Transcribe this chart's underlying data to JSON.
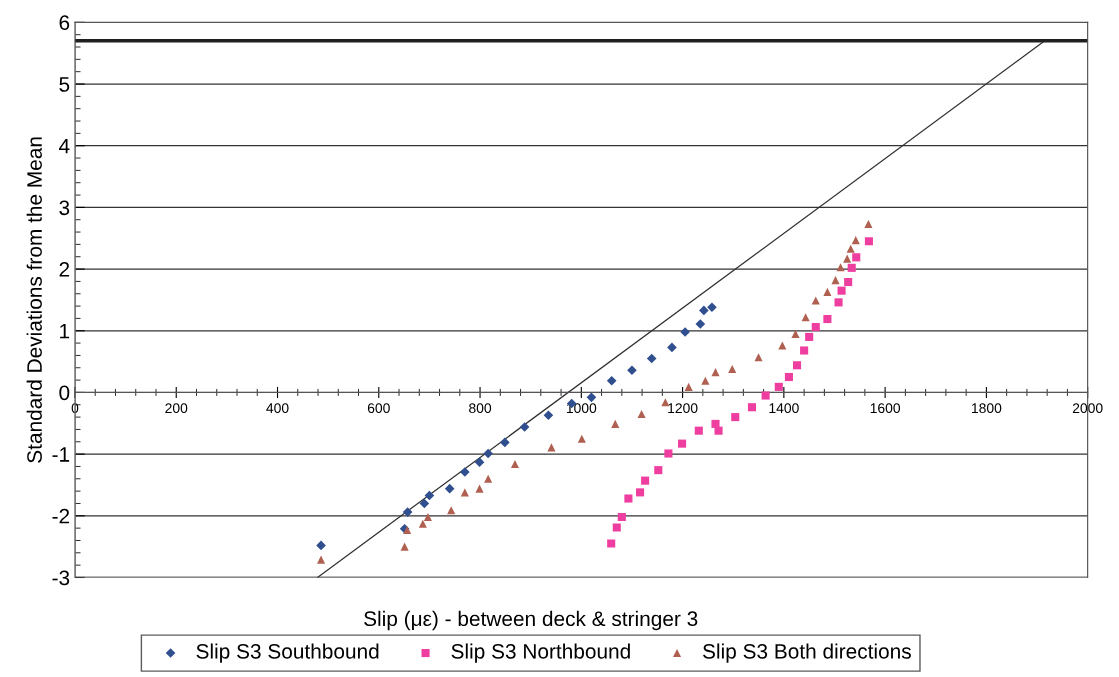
{
  "chart_data": {
    "type": "scatter",
    "xlabel": "Slip (με) - between deck & stringer 3",
    "ylabel": "Standard Deviations from the Mean",
    "xlim": [
      0,
      2000
    ],
    "xticks": [
      0,
      200,
      400,
      600,
      800,
      1000,
      1200,
      1400,
      1600,
      1800,
      2000
    ],
    "ylim": [
      -3,
      6
    ],
    "yticks": [
      -3,
      -2,
      -1,
      0,
      1,
      2,
      3,
      4,
      5,
      6
    ],
    "grid": "y",
    "legend": "bottom",
    "ref_lines": [
      {
        "axis": "y",
        "value": 5.7,
        "color": "#202020"
      }
    ],
    "series": [
      {
        "name": "Slip S3 Southbound",
        "color": "#2f4f8f",
        "marker": "diamond",
        "x": [
          486,
          651,
          657,
          690,
          700,
          740,
          770,
          799,
          816,
          849,
          888,
          935,
          981,
          1020,
          1060,
          1100,
          1139,
          1179,
          1205,
          1235,
          1242,
          1258
        ],
        "values": [
          -2.48,
          -2.21,
          -1.94,
          -1.8,
          -1.67,
          -1.56,
          -1.29,
          -1.13,
          -0.99,
          -0.81,
          -0.56,
          -0.37,
          -0.18,
          -0.08,
          0.19,
          0.36,
          0.55,
          0.73,
          0.98,
          1.11,
          1.33,
          1.38
        ]
      },
      {
        "name": "Slip S3 Northbound",
        "color": "#ee3fa0",
        "marker": "square",
        "x": [
          1059,
          1070,
          1080,
          1093,
          1116,
          1126,
          1152,
          1172,
          1199,
          1232,
          1265,
          1271,
          1304,
          1337,
          1364,
          1390,
          1410,
          1426,
          1440,
          1450,
          1463,
          1486,
          1508,
          1514,
          1527,
          1534,
          1543,
          1568
        ],
        "values": [
          -2.45,
          -2.19,
          -2.02,
          -1.72,
          -1.62,
          -1.43,
          -1.26,
          -0.99,
          -0.83,
          -0.62,
          -0.51,
          -0.62,
          -0.4,
          -0.24,
          -0.05,
          0.09,
          0.25,
          0.44,
          0.68,
          0.9,
          1.06,
          1.19,
          1.46,
          1.65,
          1.79,
          2.02,
          2.19,
          2.45
        ]
      },
      {
        "name": "Slip S3 Both directions",
        "color": "#b06050",
        "marker": "triangle",
        "x": [
          486,
          651,
          656,
          687,
          697,
          743,
          770,
          799,
          816,
          869,
          941,
          1001,
          1067,
          1119,
          1166,
          1212,
          1245,
          1265,
          1298,
          1350,
          1397,
          1423,
          1443,
          1463,
          1486,
          1502,
          1512,
          1525,
          1532,
          1542,
          1567
        ],
        "values": [
          -2.71,
          -2.5,
          -2.23,
          -2.13,
          -2.02,
          -1.91,
          -1.62,
          -1.56,
          -1.4,
          -1.16,
          -0.89,
          -0.75,
          -0.51,
          -0.35,
          -0.16,
          0.09,
          0.19,
          0.33,
          0.38,
          0.57,
          0.76,
          0.95,
          1.22,
          1.49,
          1.63,
          1.82,
          2.03,
          2.17,
          2.33,
          2.47,
          2.73
        ]
      },
      {
        "type": "line",
        "color": "#303030",
        "x": [
          479,
          1915
        ],
        "values": [
          -3,
          5.7
        ]
      }
    ]
  }
}
